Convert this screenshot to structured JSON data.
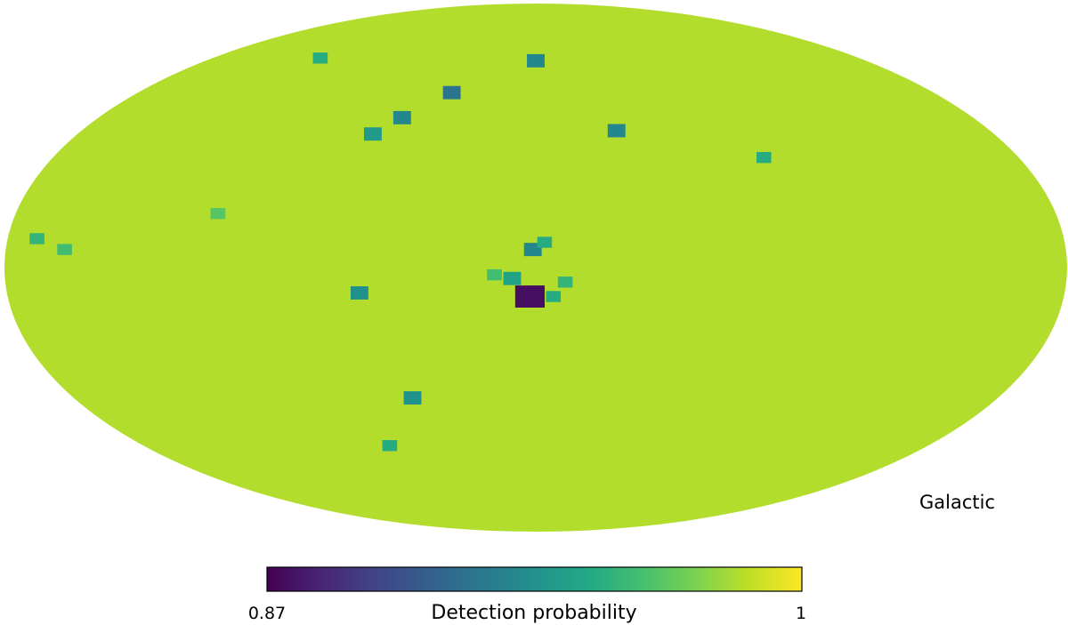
{
  "chart_data": {
    "type": "heatmap",
    "projection": "mollweide",
    "coordinate_frame_label": "Galactic",
    "colorbar": {
      "label": "Detection probability",
      "min": 0.87,
      "max": 1,
      "min_label": "0.87",
      "max_label": "1",
      "colormap": "viridis",
      "placement": "bottom"
    },
    "background_value": 0.985,
    "features": [
      {
        "lon": 2,
        "lat": -8,
        "value": 0.875
      },
      {
        "lon": 1,
        "lat": 5,
        "value": 0.93
      },
      {
        "lon": -3,
        "lat": 7,
        "value": 0.95
      },
      {
        "lon": 8,
        "lat": -3,
        "value": 0.945
      },
      {
        "lon": -6,
        "lat": -8,
        "value": 0.95
      },
      {
        "lon": 14,
        "lat": -2,
        "value": 0.96
      },
      {
        "lon": -10,
        "lat": -4,
        "value": 0.955
      },
      {
        "lon": -32,
        "lat": 39,
        "value": 0.93
      },
      {
        "lon": 38,
        "lat": 51,
        "value": 0.92
      },
      {
        "lon": 55,
        "lat": 43,
        "value": 0.93
      },
      {
        "lon": 64,
        "lat": 38,
        "value": 0.94
      },
      {
        "lon": 0,
        "lat": 62,
        "value": 0.93
      },
      {
        "lon": -85,
        "lat": 31,
        "value": 0.95
      },
      {
        "lon": 60,
        "lat": -7,
        "value": 0.935
      },
      {
        "lon": 48,
        "lat": -37,
        "value": 0.935
      },
      {
        "lon": 67,
        "lat": -52,
        "value": 0.95
      },
      {
        "lon": 120,
        "lat": 63,
        "value": 0.95
      },
      {
        "lon": 170,
        "lat": 8,
        "value": 0.955
      },
      {
        "lon": 160,
        "lat": 5,
        "value": 0.96
      },
      {
        "lon": 110,
        "lat": 15,
        "value": 0.965
      }
    ]
  }
}
